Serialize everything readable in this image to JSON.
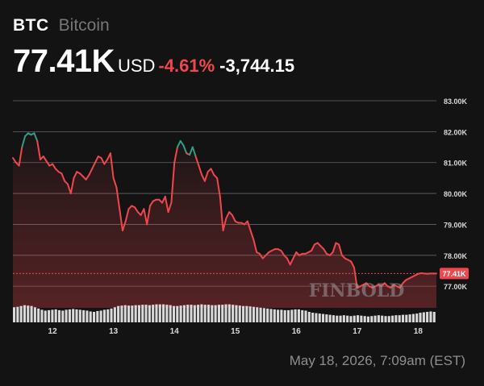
{
  "header": {
    "ticker": "BTC",
    "name": "Bitcoin",
    "price": "77.41K",
    "currency": "USD",
    "change_pct": "-4.61%",
    "change_abs": "-3,744.15"
  },
  "watermark": "FINBOLD",
  "timestamp": "May 18, 2026, 7:09am (EST)",
  "colors": {
    "background": "#131314",
    "up": "#2e9e86",
    "down": "#f0474c",
    "grid": "#8a8a8f",
    "volume": "#d9d9d9",
    "current_price_tag": "#f0474c"
  },
  "chart_data": {
    "type": "line",
    "title": "",
    "xlabel": "",
    "ylabel": "",
    "ylim": [
      76.3,
      83.6
    ],
    "yticks": [
      83,
      82,
      81,
      80,
      79,
      78,
      77
    ],
    "ytick_labels": [
      "83.00K",
      "82.00K",
      "81.00K",
      "80.00K",
      "79.00K",
      "78.00K",
      "77.00K"
    ],
    "xticks": [
      12,
      13,
      14,
      15,
      16,
      17,
      18
    ],
    "xtick_labels": [
      "12",
      "13",
      "14",
      "15",
      "16",
      "17",
      "18"
    ],
    "xlim": [
      11.35,
      18.3
    ],
    "current_value": 77.41,
    "current_label": "77.41K",
    "grid": true,
    "series": [
      {
        "x": [
          11.35,
          11.4,
          11.45,
          11.5,
          11.55,
          11.6,
          11.65,
          11.7,
          11.75,
          11.8,
          11.85,
          11.9,
          11.95,
          12.0,
          12.05,
          12.1,
          12.15,
          12.2,
          12.25,
          12.3,
          12.35,
          12.4,
          12.45,
          12.5,
          12.55,
          12.6,
          12.65,
          12.7,
          12.75,
          12.8,
          12.85,
          12.9,
          12.95,
          13.0,
          13.05,
          13.1,
          13.15,
          13.2,
          13.25,
          13.3,
          13.35,
          13.4,
          13.45,
          13.5,
          13.55,
          13.6,
          13.65,
          13.7,
          13.75,
          13.8,
          13.85,
          13.9,
          13.95,
          14.0,
          14.05,
          14.1,
          14.15,
          14.2,
          14.25,
          14.3,
          14.35,
          14.4,
          14.45,
          14.5,
          14.55,
          14.6,
          14.65,
          14.7,
          14.75,
          14.8,
          14.85,
          14.9,
          14.95,
          15.0,
          15.05,
          15.1,
          15.15,
          15.2,
          15.25,
          15.3,
          15.35,
          15.4,
          15.45,
          15.5,
          15.55,
          15.6,
          15.65,
          15.7,
          15.75,
          15.8,
          15.85,
          15.9,
          15.95,
          16.0,
          16.05,
          16.1,
          16.15,
          16.2,
          16.25,
          16.3,
          16.35,
          16.4,
          16.45,
          16.5,
          16.55,
          16.6,
          16.65,
          16.7,
          16.75,
          16.8,
          16.85,
          16.9,
          16.95,
          17.0,
          17.05,
          17.1,
          17.15,
          17.2,
          17.25,
          17.3,
          17.35,
          17.4,
          17.45,
          17.5,
          17.55,
          17.6,
          17.65,
          17.7,
          17.75,
          17.8,
          17.85,
          17.9,
          17.95,
          18.0,
          18.05,
          18.1,
          18.15,
          18.2,
          18.25,
          18.3
        ],
        "y": [
          81.15,
          81.0,
          80.9,
          81.5,
          81.85,
          81.95,
          81.9,
          81.95,
          81.7,
          81.1,
          81.2,
          81.05,
          80.9,
          80.95,
          80.8,
          80.7,
          80.65,
          80.4,
          80.3,
          80.0,
          80.5,
          80.7,
          80.65,
          80.55,
          80.45,
          80.6,
          80.8,
          81.0,
          81.2,
          81.15,
          80.95,
          81.1,
          81.3,
          80.5,
          80.2,
          79.5,
          78.8,
          79.1,
          79.5,
          79.6,
          79.55,
          79.4,
          79.3,
          79.5,
          79.0,
          79.6,
          79.75,
          79.8,
          79.8,
          79.7,
          79.9,
          79.4,
          79.7,
          81.0,
          81.5,
          81.7,
          81.55,
          81.3,
          81.25,
          81.5,
          81.2,
          80.9,
          80.6,
          80.4,
          80.7,
          80.8,
          80.6,
          80.5,
          79.9,
          78.8,
          79.2,
          79.4,
          79.3,
          79.1,
          79.05,
          79.05,
          79.0,
          79.1,
          78.8,
          78.5,
          78.1,
          78.05,
          77.9,
          78.0,
          78.1,
          78.15,
          78.2,
          78.2,
          78.15,
          78.0,
          77.9,
          77.7,
          77.9,
          78.1,
          78.0,
          78.05,
          78.05,
          78.1,
          78.15,
          78.35,
          78.4,
          78.3,
          78.2,
          78.05,
          78.0,
          78.1,
          78.4,
          78.35,
          78.0,
          77.9,
          77.85,
          77.8,
          77.6,
          76.95,
          77.0,
          77.05,
          77.1,
          77.0,
          76.95,
          77.0,
          77.05,
          77.0,
          77.1,
          77.0,
          76.95,
          77.05,
          77.0,
          76.95,
          77.1,
          77.2,
          77.25,
          77.3,
          77.35,
          77.4,
          77.42,
          77.41,
          77.4,
          77.41,
          77.41,
          77.41
        ]
      }
    ],
    "volume": [
      0.72,
      0.74,
      0.78,
      0.82,
      0.8,
      0.78,
      0.72,
      0.66,
      0.6,
      0.56,
      0.58,
      0.6,
      0.62,
      0.58,
      0.56,
      0.6,
      0.62,
      0.64,
      0.62,
      0.6,
      0.58,
      0.56,
      0.52,
      0.5,
      0.54,
      0.56,
      0.6,
      0.62,
      0.66,
      0.72,
      0.78,
      0.8,
      0.82,
      0.8,
      0.8,
      0.82,
      0.82,
      0.84,
      0.84,
      0.82,
      0.84,
      0.86,
      0.86,
      0.86,
      0.84,
      0.82,
      0.78,
      0.78,
      0.8,
      0.82,
      0.84,
      0.84,
      0.82,
      0.84,
      0.86,
      0.84,
      0.84,
      0.82,
      0.82,
      0.84,
      0.84,
      0.86,
      0.86,
      0.84,
      0.82,
      0.8,
      0.78,
      0.78,
      0.76,
      0.74,
      0.72,
      0.7,
      0.68,
      0.66,
      0.64,
      0.62,
      0.6,
      0.6,
      0.58,
      0.58,
      0.6,
      0.62,
      0.62,
      0.58,
      0.56,
      0.5,
      0.46,
      0.44,
      0.42,
      0.4,
      0.38,
      0.36,
      0.34,
      0.32,
      0.32,
      0.34,
      0.32,
      0.3,
      0.32,
      0.34,
      0.32,
      0.3,
      0.28,
      0.3,
      0.32,
      0.34,
      0.32,
      0.3,
      0.3,
      0.32,
      0.34,
      0.34,
      0.36,
      0.36,
      0.38,
      0.4,
      0.42,
      0.46,
      0.48,
      0.5,
      0.52,
      0.5
    ]
  }
}
